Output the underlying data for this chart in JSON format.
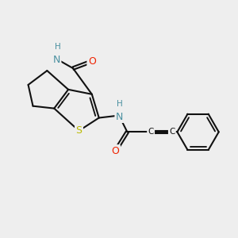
{
  "bg_color": "#eeeeee",
  "bond_color": "#111111",
  "bond_width": 1.5,
  "dbo": 0.06,
  "tbo": 0.055,
  "colors": {
    "N": "#4a90a0",
    "O": "#ee2200",
    "S": "#bbbb00",
    "C": "#111111",
    "H_color": "#4a90a0"
  },
  "fs": 9.0,
  "fs_small": 7.5,
  "fs_c": 7.5
}
